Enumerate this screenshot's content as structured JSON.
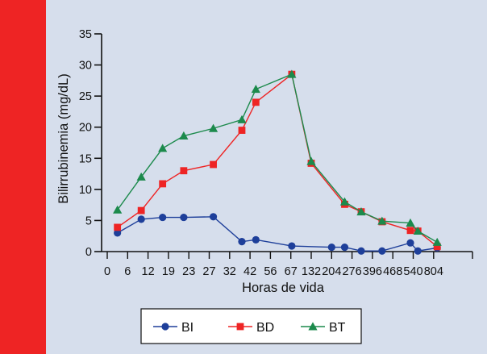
{
  "colors": {
    "accent_bar": "#EE2424",
    "panel_background": "#D6DEEC",
    "axis": "#111111"
  },
  "chart_data": {
    "type": "line",
    "title": "",
    "xlabel": "Horas de vida",
    "ylabel": "Bilirrubinemia (mg/dL)",
    "ylim": [
      0,
      35
    ],
    "yticks": [
      0,
      5,
      10,
      15,
      20,
      25,
      30,
      35
    ],
    "grid": false,
    "legend_position": "bottom-center",
    "categories": [
      "3",
      "10",
      "17",
      "22",
      "28",
      "38",
      "46",
      "70",
      "132",
      "204",
      "250",
      "330",
      "430",
      "530",
      "600",
      "804",
      "850"
    ],
    "xticks": [
      {
        "label": "0",
        "at": 0
      },
      {
        "label": "6",
        "at": 6
      },
      {
        "label": "12",
        "at": 12
      },
      {
        "label": "19",
        "at": 19
      },
      {
        "label": "23",
        "at": 23
      },
      {
        "label": "27",
        "at": 27
      },
      {
        "label": "32",
        "at": 32
      },
      {
        "label": "42",
        "at": 42
      },
      {
        "label": "56",
        "at": 56
      },
      {
        "label": "67",
        "at": 67
      },
      {
        "label": "132",
        "at": 132
      },
      {
        "label": "204",
        "at": 204
      },
      {
        "label": "276",
        "at": 276
      },
      {
        "label": "396",
        "at": 396
      },
      {
        "label": "468",
        "at": 468
      },
      {
        "label": "540",
        "at": 540
      },
      {
        "label": "804",
        "at": 804
      }
    ],
    "series": [
      {
        "name": "BI",
        "color": "#1E3F9A",
        "marker": "circle",
        "points": [
          {
            "x": 3,
            "y": 3.0
          },
          {
            "x": 10,
            "y": 5.2
          },
          {
            "x": 17,
            "y": 5.5
          },
          {
            "x": 22,
            "y": 5.5
          },
          {
            "x": 28,
            "y": 5.6
          },
          {
            "x": 38,
            "y": 1.6
          },
          {
            "x": 46,
            "y": 1.9
          },
          {
            "x": 70,
            "y": 0.9
          },
          {
            "x": 204,
            "y": 0.7
          },
          {
            "x": 250,
            "y": 0.7
          },
          {
            "x": 330,
            "y": 0.1
          },
          {
            "x": 430,
            "y": 0.1
          },
          {
            "x": 530,
            "y": 1.4
          },
          {
            "x": 600,
            "y": 0.1
          },
          {
            "x": 850,
            "y": 0.6
          }
        ]
      },
      {
        "name": "BD",
        "color": "#EE2424",
        "marker": "square",
        "points": [
          {
            "x": 3,
            "y": 3.9
          },
          {
            "x": 10,
            "y": 6.6
          },
          {
            "x": 17,
            "y": 10.9
          },
          {
            "x": 22,
            "y": 13.0
          },
          {
            "x": 28,
            "y": 14.0
          },
          {
            "x": 38,
            "y": 19.5
          },
          {
            "x": 46,
            "y": 24.0
          },
          {
            "x": 70,
            "y": 28.5
          },
          {
            "x": 132,
            "y": 14.2
          },
          {
            "x": 250,
            "y": 7.6
          },
          {
            "x": 330,
            "y": 6.4
          },
          {
            "x": 430,
            "y": 4.8
          },
          {
            "x": 530,
            "y": 3.4
          },
          {
            "x": 600,
            "y": 3.3
          },
          {
            "x": 850,
            "y": 0.8
          }
        ]
      },
      {
        "name": "BT",
        "color": "#1C8A4C",
        "marker": "triangle",
        "points": [
          {
            "x": 3,
            "y": 6.7
          },
          {
            "x": 10,
            "y": 12.0
          },
          {
            "x": 17,
            "y": 16.6
          },
          {
            "x": 22,
            "y": 18.6
          },
          {
            "x": 28,
            "y": 19.8
          },
          {
            "x": 38,
            "y": 21.2
          },
          {
            "x": 46,
            "y": 26.1
          },
          {
            "x": 70,
            "y": 28.5
          },
          {
            "x": 132,
            "y": 14.5
          },
          {
            "x": 250,
            "y": 8.0
          },
          {
            "x": 330,
            "y": 6.4
          },
          {
            "x": 430,
            "y": 4.9
          },
          {
            "x": 530,
            "y": 4.6
          },
          {
            "x": 600,
            "y": 3.3
          },
          {
            "x": 850,
            "y": 1.5
          }
        ]
      }
    ]
  }
}
